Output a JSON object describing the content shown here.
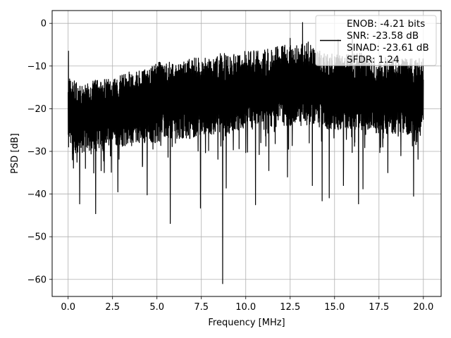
{
  "chart_data": {
    "type": "line",
    "title": "",
    "xlabel": "Frequency [MHz]",
    "ylabel": "PSD [dB]",
    "xlim": [
      -0.9,
      21.0
    ],
    "ylim": [
      -64,
      3
    ],
    "xticks": [
      0.0,
      2.5,
      5.0,
      7.5,
      10.0,
      12.5,
      15.0,
      17.5,
      20.0
    ],
    "xtick_labels": [
      "0.0",
      "2.5",
      "5.0",
      "7.5",
      "10.0",
      "12.5",
      "15.0",
      "17.5",
      "20.0"
    ],
    "yticks": [
      0,
      -10,
      -20,
      -30,
      -40,
      -50,
      -60
    ],
    "ytick_labels": [
      "0",
      "−10",
      "−20",
      "−30",
      "−40",
      "−50",
      "−60"
    ],
    "grid": true,
    "legend_position": "top-right",
    "line_color": "#000000",
    "legend": {
      "lines": [
        "ENOB: -4.21 bits",
        "SNR: -23.58 dB",
        "SINAD: -23.61 dB",
        "SFDR: 1.24"
      ]
    },
    "series": [
      {
        "x_range": [
          0,
          20
        ],
        "envelope": {
          "x": [
            0,
            0.5,
            1,
            1.5,
            2,
            2.5,
            3,
            3.5,
            4,
            4.5,
            5,
            5.5,
            6,
            6.5,
            7,
            7.5,
            8,
            8.5,
            9,
            9.5,
            10,
            10.5,
            11,
            11.5,
            12,
            12.5,
            13,
            13.5,
            14,
            14.5,
            15,
            15.5,
            16,
            16.5,
            17,
            17.5,
            18,
            18.5,
            19,
            19.5,
            20
          ],
          "upper": [
            -12,
            -14,
            -14,
            -13,
            -13,
            -13,
            -12,
            -11,
            -11,
            -10,
            -9,
            -9,
            -9,
            -9,
            -8,
            -8,
            -8,
            -7,
            -7,
            -7,
            -6,
            -6,
            -6,
            -6,
            -5,
            -5,
            -5,
            -4,
            -6,
            -7,
            -7,
            -7,
            -7,
            -7,
            -8,
            -8,
            -8,
            -8,
            -8,
            -8,
            -8
          ],
          "lower": [
            -30,
            -31,
            -30,
            -30,
            -30,
            -29,
            -29,
            -28,
            -28,
            -28,
            -28,
            -27,
            -27,
            -27,
            -27,
            -26,
            -26,
            -26,
            -26,
            -25,
            -25,
            -25,
            -25,
            -25,
            -24,
            -24,
            -24,
            -24,
            -24,
            -25,
            -25,
            -25,
            -25,
            -25,
            -25,
            -26,
            -26,
            -26,
            -26,
            -26,
            -26
          ]
        },
        "peaks": [
          {
            "x": 0.02,
            "y": -6.5
          },
          {
            "x": 13.2,
            "y": 0.2
          },
          {
            "x": 12.5,
            "y": -3.5
          },
          {
            "x": 15.2,
            "y": -3.8
          },
          {
            "x": 16.0,
            "y": -3.5
          }
        ],
        "dips": [
          {
            "x": 0.65,
            "y": -42.3
          },
          {
            "x": 1.55,
            "y": -44.6
          },
          {
            "x": 2.8,
            "y": -39.5
          },
          {
            "x": 4.45,
            "y": -40.2
          },
          {
            "x": 5.75,
            "y": -46.9
          },
          {
            "x": 7.45,
            "y": -43.3
          },
          {
            "x": 8.7,
            "y": -61.0
          },
          {
            "x": 8.9,
            "y": -38.6
          },
          {
            "x": 10.55,
            "y": -42.5
          },
          {
            "x": 11.3,
            "y": -34.5
          },
          {
            "x": 12.35,
            "y": -36.0
          },
          {
            "x": 13.75,
            "y": -38.0
          },
          {
            "x": 14.3,
            "y": -41.6
          },
          {
            "x": 14.7,
            "y": -40.9
          },
          {
            "x": 15.5,
            "y": -38.0
          },
          {
            "x": 16.35,
            "y": -42.3
          },
          {
            "x": 16.6,
            "y": -38.8
          },
          {
            "x": 18.0,
            "y": -35.0
          },
          {
            "x": 19.45,
            "y": -40.5
          }
        ]
      }
    ]
  }
}
